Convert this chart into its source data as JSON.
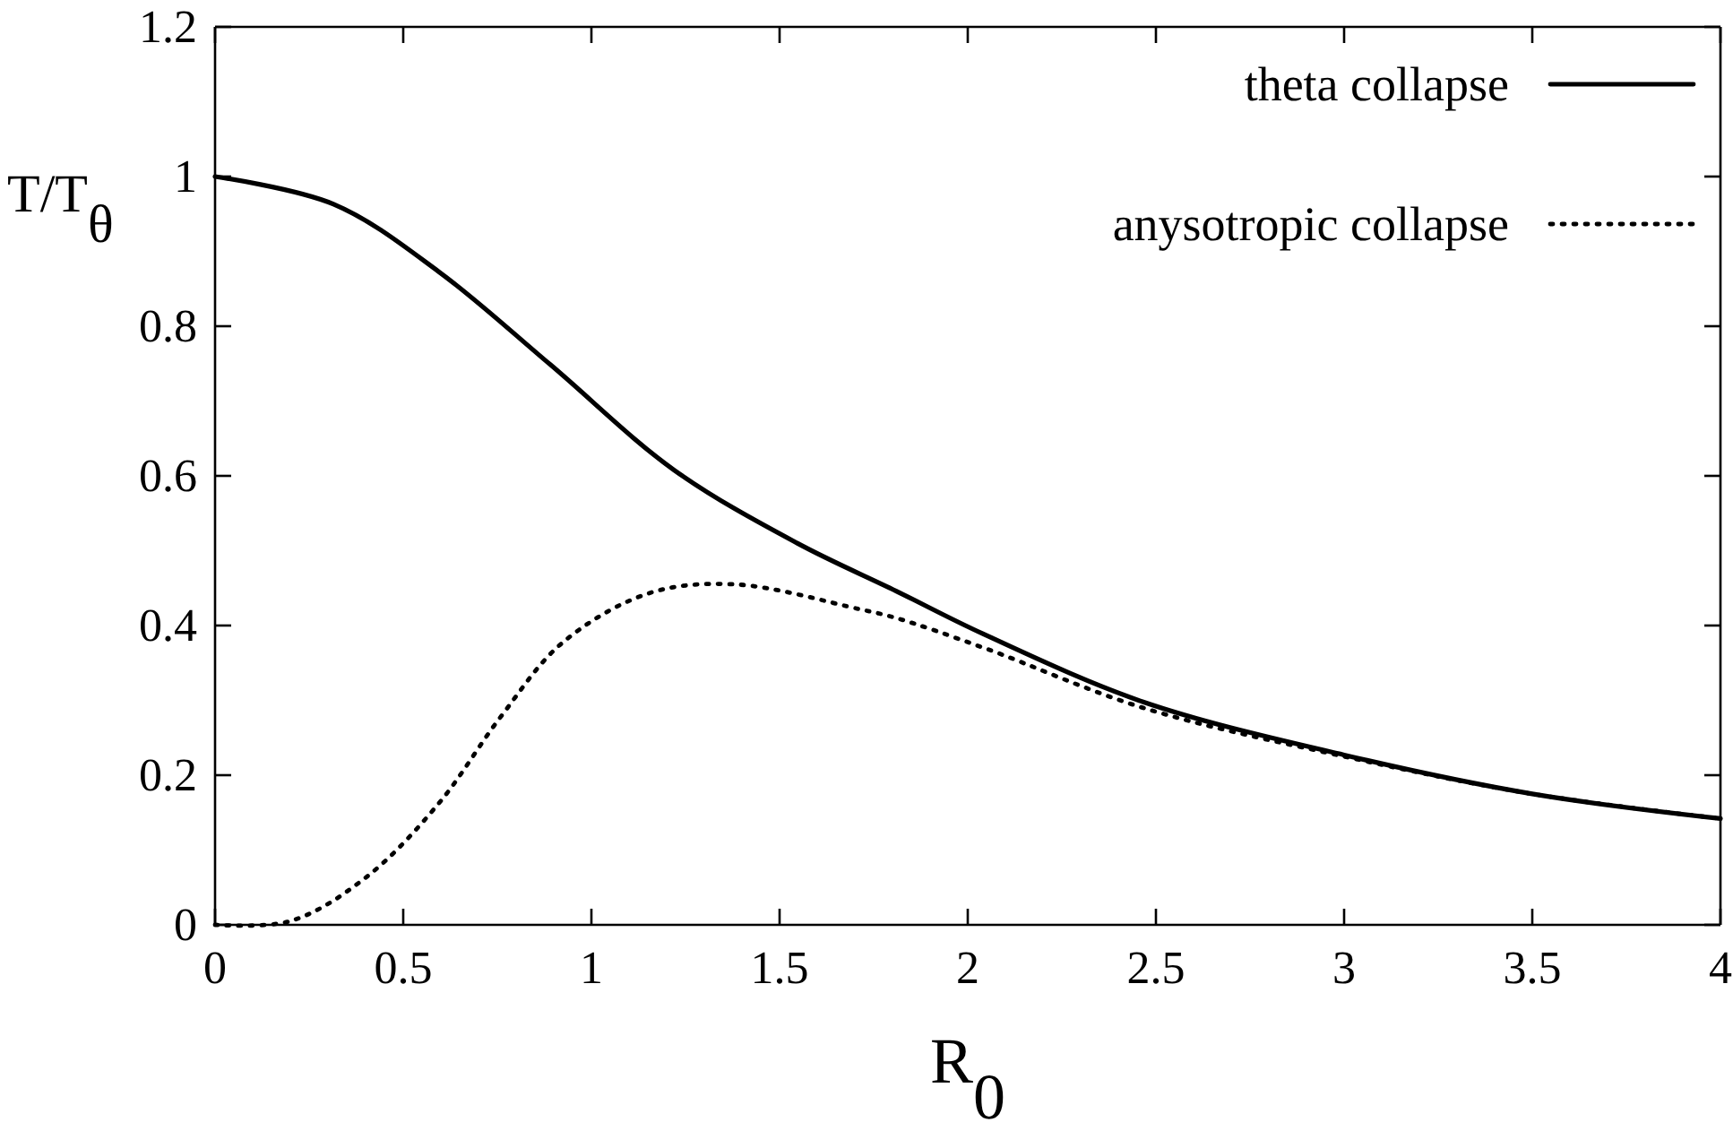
{
  "chart_data": {
    "type": "line",
    "xlabel": "R$_{0}$",
    "ylabel": "T/T$_{θ}$",
    "xlim": [
      0,
      4
    ],
    "xticks": [
      0,
      0.5,
      1,
      1.5,
      2,
      2.5,
      3,
      3.5,
      4
    ],
    "ylim": [
      0,
      1.2
    ],
    "yticks": [
      0,
      0.2,
      0.4,
      0.6,
      0.8,
      1,
      1.2
    ],
    "grid": false,
    "legend": "top right",
    "series": [
      {
        "name": "theta collapse",
        "color": "#000000",
        "line_style": "solid",
        "x": [
          0,
          0.315,
          0.594,
          0.89,
          1.219,
          1.547,
          1.81,
          2.04,
          2.466,
          3.0,
          3.5,
          4
        ],
        "values": [
          1.0,
          0.963,
          0.873,
          0.749,
          0.608,
          0.51,
          0.446,
          0.389,
          0.298,
          0.227,
          0.175,
          0.142
        ]
      },
      {
        "name": "anysotropic collapse",
        "color": "#000000",
        "line_style": "dotted",
        "x": [
          0,
          0.2,
          0.4,
          0.594,
          0.759,
          0.923,
          1.152,
          1.382,
          1.711,
          1.81,
          2.049,
          2.466,
          3.0,
          3.5,
          4
        ],
        "values": [
          0,
          0.005,
          0.063,
          0.162,
          0.278,
          0.377,
          0.443,
          0.455,
          0.422,
          0.41,
          0.369,
          0.29,
          0.225,
          0.175,
          0.142
        ]
      }
    ]
  }
}
